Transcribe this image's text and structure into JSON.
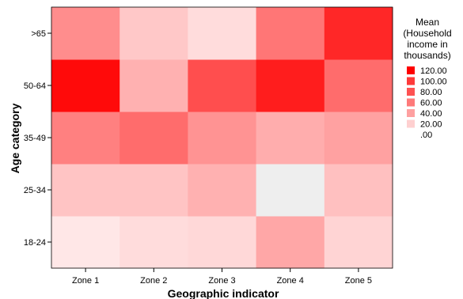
{
  "chart_data": {
    "type": "heatmap",
    "x_categories": [
      "Zone 1",
      "Zone 2",
      "Zone 3",
      "Zone 4",
      "Zone 5"
    ],
    "y_categories": [
      "18-24",
      "25-34",
      "35-49",
      "50-64",
      ">65"
    ],
    "xlabel": "Geographic indicator",
    "ylabel": "Age category",
    "legend_title": [
      "Mean",
      "(Household",
      "income in",
      "thousands)"
    ],
    "legend_labels": [
      "120.00",
      "100.00",
      "80.00",
      "60.00",
      "40.00",
      "20.00",
      ".00"
    ],
    "legend_colors": [
      "#fe0000",
      "#fe3a3a",
      "#fe5252",
      "#fe7a7a",
      "#fea0a0",
      "#fed0d0",
      "#ffffff"
    ],
    "color_range": [
      0,
      130
    ],
    "values": [
      [
        12,
        18,
        20,
        45,
        22
      ],
      [
        30,
        30,
        40,
        null,
        32
      ],
      [
        65,
        75,
        55,
        42,
        48
      ],
      [
        125,
        40,
        90,
        115,
        75
      ],
      [
        58,
        28,
        18,
        70,
        110
      ]
    ],
    "missing_color": "#eeeeee",
    "grid": false,
    "legend_position": "right"
  }
}
